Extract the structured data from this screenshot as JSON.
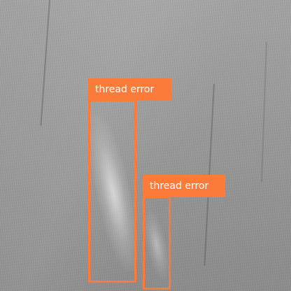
{
  "detections": [
    {
      "label": "thread error"
    },
    {
      "label": "thread error"
    }
  ],
  "colors": {
    "box": "#fb7c3a",
    "label_text": "#ffffff",
    "fabric": "#9a9a9a"
  }
}
